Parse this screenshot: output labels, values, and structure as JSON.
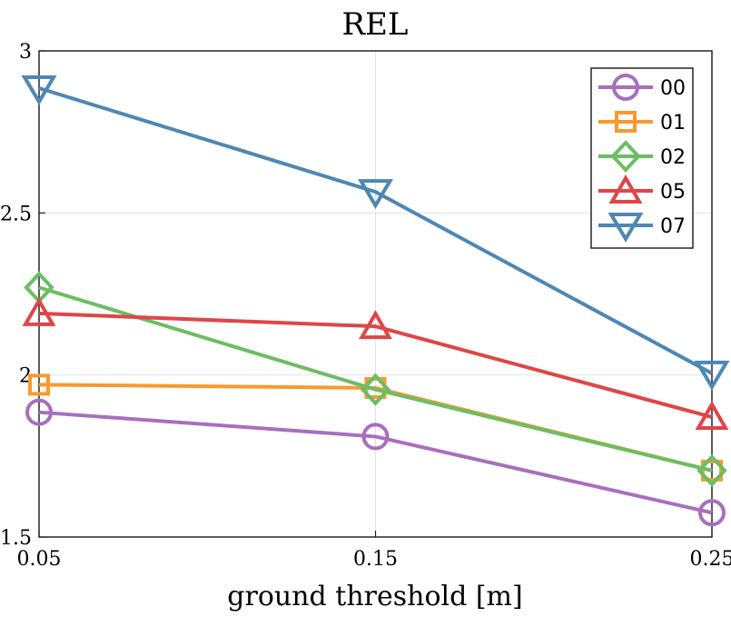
{
  "chart_data": {
    "type": "line",
    "title": "REL",
    "xlabel": "ground threshold [m]",
    "ylabel": "",
    "x": [
      0.05,
      0.15,
      0.25
    ],
    "x_tick_labels": [
      "0.05",
      "0.15",
      "0.25"
    ],
    "y_ticks": [
      1.5,
      2,
      2.5,
      3
    ],
    "y_tick_labels": [
      "1.5",
      "2",
      "2.5",
      "3"
    ],
    "xlim": [
      0.05,
      0.25
    ],
    "ylim": [
      1.5,
      3
    ],
    "grid": true,
    "legend_position": "top-right",
    "series": [
      {
        "name": "00",
        "values": [
          1.885,
          1.81,
          1.575
        ],
        "color": "#a86fbd",
        "marker": "circle"
      },
      {
        "name": "01",
        "values": [
          1.97,
          1.96,
          1.705
        ],
        "color": "#f9992f",
        "marker": "square"
      },
      {
        "name": "02",
        "values": [
          2.27,
          1.955,
          1.705
        ],
        "color": "#6cbd63",
        "marker": "diamond"
      },
      {
        "name": "05",
        "values": [
          2.19,
          2.15,
          1.87
        ],
        "color": "#e04548",
        "marker": "triangle-up"
      },
      {
        "name": "07",
        "values": [
          2.885,
          2.565,
          2.005
        ],
        "color": "#4e87b4",
        "marker": "triangle-down"
      }
    ]
  }
}
